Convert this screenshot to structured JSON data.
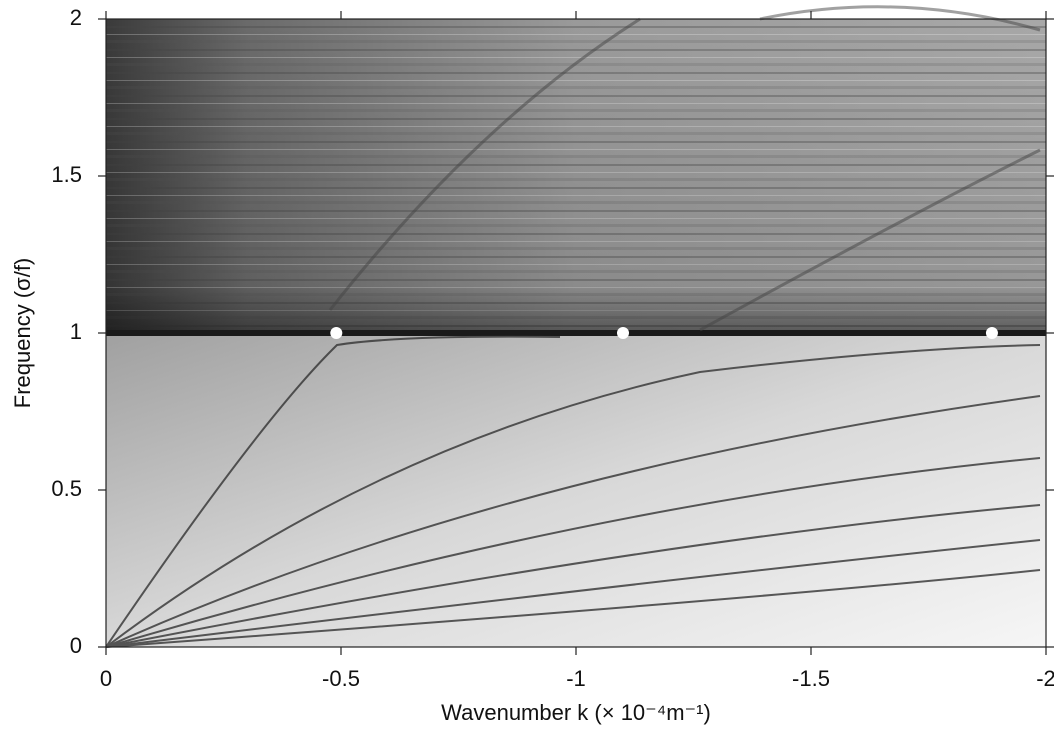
{
  "chart_data": {
    "type": "scatter",
    "x_label": "Wavenumber k (× 10⁻⁴m⁻¹)",
    "y_label": "Frequency (σ/f)",
    "x": [
      -0.49,
      -1.1,
      -1.885
    ],
    "values": [
      1,
      1,
      1
    ],
    "color": "#ffffff",
    "xlim": [
      0,
      -2
    ],
    "xticks": [
      0,
      -0.5,
      -1,
      -1.5,
      -2
    ],
    "ylim": [
      0,
      2
    ],
    "yticks": [
      0,
      0.5,
      1,
      1.5,
      2
    ]
  }
}
